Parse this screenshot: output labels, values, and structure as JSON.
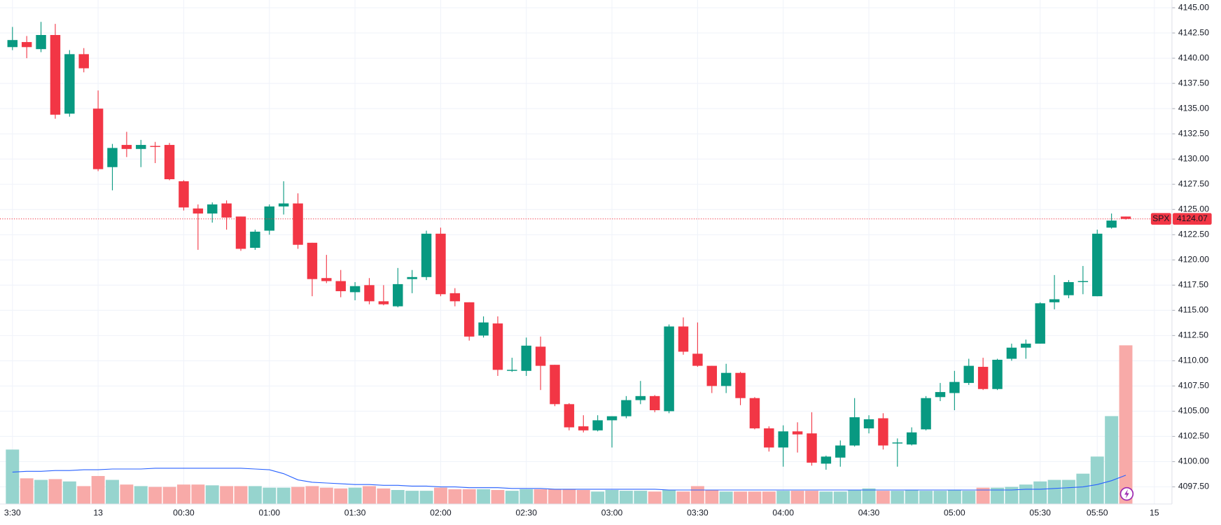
{
  "chart_data": {
    "type": "candlestick",
    "symbol": "SPX",
    "up_color": "#089981",
    "down_color": "#f23645",
    "volume_up_color": "#96d4ce",
    "volume_down_color": "#f8aaa8",
    "ma_color": "#2962ff",
    "grid": true,
    "categories": [
      "3:30",
      null,
      null,
      null,
      null,
      null,
      "13",
      null,
      null,
      null,
      null,
      null,
      "00:30",
      null,
      null,
      null,
      null,
      null,
      "01:00",
      null,
      null,
      null,
      null,
      null,
      "01:30",
      null,
      null,
      null,
      null,
      null,
      "02:00",
      null,
      null,
      null,
      null,
      null,
      "02:30",
      null,
      null,
      null,
      null,
      null,
      "03:00",
      null,
      null,
      null,
      null,
      null,
      "03:30",
      null,
      null,
      null,
      null,
      null,
      "04:00",
      null,
      null,
      null,
      null,
      null,
      "04:30",
      null,
      null,
      null,
      null,
      null,
      "05:00",
      null,
      null,
      null,
      null,
      null,
      "05:30",
      null,
      null,
      null,
      "05:50",
      null,
      null
    ],
    "next_day_label": "15",
    "open": [
      4141.1,
      4141.6,
      4140.9,
      4142.3,
      4134.5,
      4140.4,
      4135.0,
      4129.2,
      4131.4,
      4131.0,
      4131.3,
      4131.4,
      4127.8,
      4125.1,
      4124.6,
      4125.6,
      4124.3,
      4121.2,
      4122.9,
      4125.3,
      4125.6,
      4121.7,
      4118.2,
      4117.9,
      4116.8,
      4117.5,
      4115.9,
      4115.4,
      4118.1,
      4118.3,
      4122.6,
      4116.7,
      4115.8,
      4112.5,
      4113.7,
      4109.0,
      4109.0,
      4111.4,
      4109.6,
      4105.7,
      4103.5,
      4103.1,
      4104.1,
      4104.5,
      4106.1,
      4106.5,
      4105.0,
      4113.4,
      4110.7,
      4109.5,
      4107.5,
      4108.8,
      4106.3,
      4103.3,
      4101.4,
      4103.0,
      4102.8,
      4099.8,
      4100.4,
      4101.6,
      4103.3,
      4104.3,
      4101.8,
      4101.7,
      4103.2,
      4106.4,
      4106.8,
      4107.8,
      4109.4,
      4107.2,
      4110.2,
      4111.3,
      4111.7,
      4115.8,
      4116.5,
      4117.8,
      4116.4,
      4123.2,
      4124.3
    ],
    "high": [
      4143.1,
      4142.2,
      4143.6,
      4143.4,
      4140.8,
      4141.0,
      4136.8,
      4131.5,
      4132.7,
      4131.9,
      4131.7,
      4131.6,
      4127.9,
      4125.5,
      4125.7,
      4125.9,
      4124.3,
      4123.0,
      4125.5,
      4127.8,
      4126.6,
      4121.7,
      4120.5,
      4119.0,
      4117.8,
      4118.2,
      4117.5,
      4119.2,
      4119.0,
      4122.9,
      4123.2,
      4117.2,
      4115.8,
      4114.4,
      4114.4,
      4110.3,
      4112.3,
      4112.4,
      4109.6,
      4105.8,
      4104.6,
      4104.6,
      4104.5,
      4106.5,
      4108.0,
      4106.6,
      4113.6,
      4114.3,
      4113.8,
      4109.5,
      4109.7,
      4108.9,
      4106.4,
      4103.5,
      4103.6,
      4103.9,
      4104.9,
      4100.6,
      4102.1,
      4106.3,
      4104.6,
      4104.8,
      4102.3,
      4103.4,
      4106.5,
      4107.8,
      4109.0,
      4110.2,
      4110.3,
      4110.2,
      4111.7,
      4112.1,
      4115.8,
      4118.5,
      4118.0,
      4119.4,
      4123.0,
      4124.6,
      4124.3
    ],
    "low": [
      4140.8,
      4140.0,
      4140.6,
      4134.0,
      4134.2,
      4138.6,
      4128.8,
      4126.9,
      4130.2,
      4129.2,
      4129.6,
      4127.9,
      4124.9,
      4121.0,
      4123.7,
      4123.0,
      4120.9,
      4121.0,
      4122.5,
      4124.5,
      4121.1,
      4116.4,
      4117.7,
      4116.3,
      4116.0,
      4115.6,
      4115.5,
      4115.3,
      4116.7,
      4118.0,
      4116.4,
      4115.4,
      4112.0,
      4112.3,
      4108.5,
      4108.9,
      4108.5,
      4107.1,
      4105.5,
      4103.1,
      4102.9,
      4103.0,
      4101.4,
      4104.3,
      4105.7,
      4104.9,
      4104.8,
      4110.6,
      4109.4,
      4106.8,
      4106.8,
      4105.6,
      4103.2,
      4101.0,
      4099.5,
      4100.9,
      4099.6,
      4099.2,
      4099.5,
      4101.5,
      4102.8,
      4101.2,
      4099.5,
      4101.6,
      4103.1,
      4106.0,
      4105.1,
      4107.6,
      4107.1,
      4107.1,
      4110.0,
      4110.2,
      4111.7,
      4115.1,
      4116.2,
      4116.6,
      4116.4,
      4123.1,
      4124.0
    ],
    "close": [
      4141.8,
      4141.1,
      4142.3,
      4134.4,
      4140.4,
      4139.0,
      4129.0,
      4131.1,
      4131.0,
      4131.4,
      4131.2,
      4128.0,
      4125.2,
      4124.6,
      4125.5,
      4124.2,
      4121.1,
      4122.8,
      4125.3,
      4125.6,
      4121.5,
      4118.1,
      4117.9,
      4116.9,
      4117.4,
      4115.9,
      4115.6,
      4117.6,
      4118.3,
      4122.6,
      4116.6,
      4115.9,
      4112.4,
      4113.8,
      4109.1,
      4109.1,
      4111.5,
      4109.5,
      4105.7,
      4103.4,
      4103.1,
      4104.1,
      4104.5,
      4106.1,
      4106.5,
      4105.1,
      4113.4,
      4110.9,
      4109.5,
      4107.5,
      4108.8,
      4106.3,
      4103.3,
      4101.4,
      4103.0,
      4102.7,
      4099.9,
      4100.5,
      4101.6,
      4104.4,
      4104.2,
      4101.6,
      4101.9,
      4102.9,
      4106.3,
      4106.9,
      4107.9,
      4109.5,
      4107.2,
      4110.1,
      4111.3,
      4111.7,
      4115.7,
      4116.1,
      4117.8,
      4117.9,
      4122.6,
      4123.9,
      4124.07
    ],
    "volume": [
      70,
      33,
      31,
      32,
      29,
      23,
      36,
      31,
      25,
      23,
      22,
      22,
      25,
      25,
      24,
      23,
      23,
      23,
      21,
      21,
      22,
      23,
      21,
      20,
      21,
      23,
      20,
      18,
      17,
      17,
      21,
      19,
      19,
      19,
      18,
      17,
      19,
      19,
      19,
      19,
      18,
      16,
      18,
      17,
      17,
      16,
      18,
      16,
      23,
      18,
      16,
      16,
      16,
      16,
      17,
      17,
      17,
      16,
      16,
      18,
      20,
      17,
      17,
      18,
      17,
      17,
      18,
      17,
      21,
      21,
      22,
      25,
      29,
      31,
      31,
      39,
      61,
      113,
      204
    ],
    "volume_ma": [
      41,
      42,
      42,
      43,
      43,
      44,
      44,
      45,
      45,
      45,
      46,
      46,
      46,
      46,
      46,
      46,
      46,
      45,
      44,
      39,
      31,
      28,
      27,
      26,
      25,
      25,
      24,
      24,
      23,
      23,
      22,
      22,
      21,
      21,
      21,
      20,
      20,
      20,
      19,
      19,
      19,
      19,
      19,
      19,
      19,
      19,
      18,
      18,
      18,
      18,
      18,
      18,
      18,
      18,
      18,
      18,
      18,
      18,
      18,
      18,
      18,
      18,
      18,
      18,
      18,
      18,
      18,
      18,
      18,
      18,
      18,
      19,
      19,
      20,
      21,
      22,
      25,
      30,
      37
    ],
    "volume_lim": [
      0,
      648
    ],
    "ylim": [
      4095.8,
      4145.77
    ],
    "yticks": [
      {
        "value": 4097.5,
        "label": "4097.50"
      },
      {
        "value": 4100,
        "label": "4100.00"
      },
      {
        "value": 4102.5,
        "label": "4102.50"
      },
      {
        "value": 4105,
        "label": "4105.00"
      },
      {
        "value": 4107.5,
        "label": "4107.50"
      },
      {
        "value": 4110,
        "label": "4110.00"
      },
      {
        "value": 4112.5,
        "label": "4112.50"
      },
      {
        "value": 4115,
        "label": "4115.00"
      },
      {
        "value": 4117.5,
        "label": "4117.50"
      },
      {
        "value": 4120,
        "label": "4120.00"
      },
      {
        "value": 4122.5,
        "label": "4122.50"
      },
      {
        "value": 4125,
        "label": "4125.00"
      },
      {
        "value": 4127.5,
        "label": "4127.50"
      },
      {
        "value": 4130,
        "label": "4130.00"
      },
      {
        "value": 4132.5,
        "label": "4132.50"
      },
      {
        "value": 4135,
        "label": "4135.00"
      },
      {
        "value": 4137.5,
        "label": "4137.50"
      },
      {
        "value": 4140,
        "label": "4140.00"
      },
      {
        "value": 4142.5,
        "label": "4142.50"
      },
      {
        "value": 4145,
        "label": "4145.00"
      }
    ]
  }
}
